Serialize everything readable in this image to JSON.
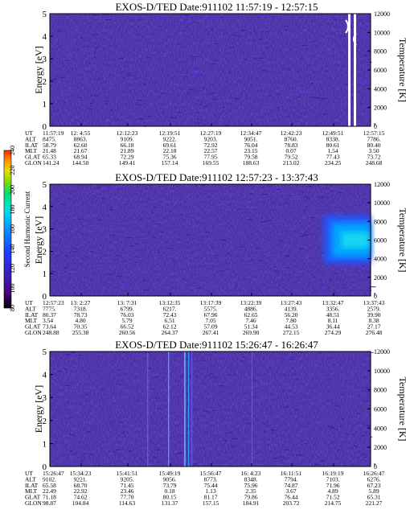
{
  "colorbar": {
    "label": "Second Harmonic Current",
    "ticks": [
      "80",
      "100",
      "120",
      "140",
      "160",
      "180",
      "200",
      "220",
      "240"
    ],
    "colors": [
      "#000000",
      "#4b0082",
      "#3a1fbf",
      "#1a3cff",
      "#0f7bff",
      "#00b4ff",
      "#00e5e0",
      "#00e07a",
      "#7adc00",
      "#e8e000",
      "#ff9a00",
      "#ff2a00"
    ]
  },
  "chart_data": [
    {
      "type": "heatmap",
      "title": "EXOS-D/TED   Date:911102   11:57:19 - 12:57:15",
      "ylabel": "Energy [eV]",
      "y2label": "Temperature [K]",
      "yticks": [
        "0",
        "1",
        "2",
        "3",
        "4",
        "5"
      ],
      "y2ticks": [
        "0",
        "2000",
        "4000",
        "6000",
        "8000",
        "10000",
        "12000"
      ],
      "ylim": [
        0,
        5
      ],
      "y2lim": [
        0,
        12000
      ],
      "background": "#4a2fa8",
      "features": "noise; white gap near 12:52-12:55",
      "table": {
        "rows": [
          "UT",
          "ALT",
          "ILAT",
          "MLT",
          "GLAT",
          "GLON"
        ],
        "cols": [
          [
            "11:57:19",
            "8475.",
            "58.79",
            "21.48",
            "65.33",
            "141.24"
          ],
          [
            "12: 4:55",
            "8863.",
            "62.60",
            "21.67",
            "68.94",
            "144.50"
          ],
          [
            "12:12:23",
            "9109.",
            "66.18",
            "21.89",
            "72.29",
            "149.41"
          ],
          [
            "12:19:51",
            "9222.",
            "69.61",
            "22.18",
            "75.36",
            "157.14"
          ],
          [
            "12:27:19",
            "9203.",
            "72.92",
            "22.57",
            "77.95",
            "169.55"
          ],
          [
            "12:34:47",
            "9051.",
            "76.04",
            "23.15",
            "79.58",
            "188.63"
          ],
          [
            "12:42:23",
            "8760.",
            "78.83",
            "0.07",
            "79.52",
            "213.02"
          ],
          [
            "12:49:51",
            "8338.",
            "80.61",
            "1.54",
            "77.43",
            "234.25"
          ],
          [
            "12:57:15",
            "7786.",
            "80.40",
            "3.50",
            "73.72",
            "248.68"
          ]
        ]
      }
    },
    {
      "type": "heatmap",
      "title": "EXOS-D/TED   Date:911102   12:57:23 - 13:37:43",
      "ylabel": "Energy [eV]",
      "y2label": "Temperature [K]",
      "yticks": [
        "0",
        "1",
        "2",
        "3",
        "4",
        "5"
      ],
      "y2ticks": [
        "0",
        "2000",
        "4000",
        "6000",
        "8000",
        "10000",
        "12000"
      ],
      "ylim": [
        0,
        5
      ],
      "y2lim": [
        0,
        12000
      ],
      "background": "#4a2fa8",
      "features": "intense band 1-3.5 eV after 13:30",
      "table": {
        "rows": [
          "UT",
          "ALT",
          "ILAT",
          "MLT",
          "GLAT",
          "GLON"
        ],
        "cols": [
          [
            "12:57:23",
            "7775.",
            "80.37",
            "3.54",
            "73.64",
            "248.88"
          ],
          [
            "13: 2:27",
            "7318.",
            "78.73",
            "4.80",
            "70.35",
            "255.38"
          ],
          [
            "13: 7:31",
            "6799.",
            "76.03",
            "5.79",
            "66.52",
            "260.56"
          ],
          [
            "13:12:35",
            "6217.",
            "72.43",
            "6.51",
            "62.12",
            "264.37"
          ],
          [
            "13:17:39",
            "5575.",
            "67.96",
            "7.05",
            "57.09",
            "267.41"
          ],
          [
            "13:22:39",
            "4886.",
            "62.65",
            "7.46",
            "51.34",
            "269.90"
          ],
          [
            "13:27:43",
            "4139.",
            "56.20",
            "7.80",
            "44.53",
            "272.15"
          ],
          [
            "13:32:47",
            "3356.",
            "48.51",
            "8.11",
            "36.44",
            "274.29"
          ],
          [
            "13:37:43",
            "2579.",
            "39.90",
            "8.38",
            "27.17",
            "276.48"
          ]
        ]
      }
    },
    {
      "type": "heatmap",
      "title": "EXOS-D/TED   Date:911102   15:26:47 - 16:26:47",
      "ylabel": "Energy [eV]",
      "y2label": "Temperature [K]",
      "yticks": [
        "0",
        "1",
        "2",
        "3",
        "4",
        "5"
      ],
      "y2ticks": [
        "0",
        "2000",
        "4000",
        "6000",
        "8000",
        "10000",
        "12000"
      ],
      "ylim": [
        0,
        5
      ],
      "y2lim": [
        0,
        12000
      ],
      "background": "#4a2fa8",
      "features": "vertical stripes near 15:47-15:50",
      "table": {
        "rows": [
          "UT",
          "ALT",
          "ILAT",
          "MLT",
          "GLAT",
          "GLON"
        ],
        "cols": [
          [
            "15:26:47",
            "9102.",
            "65.58",
            "22.49",
            "71.18",
            "98.87"
          ],
          [
            "15:34:23",
            "9221.",
            "68.70",
            "22.92",
            "74.62",
            "104.84"
          ],
          [
            "15:41:51",
            "9205.",
            "71.45",
            "23.46",
            "77.70",
            "114.63"
          ],
          [
            "15:49:19",
            "9056.",
            "73.79",
            "0.18",
            "80.15",
            "131.37"
          ],
          [
            "15:56:47",
            "8773.",
            "75.44",
            "1.13",
            "81.17",
            "157.15"
          ],
          [
            "16: 4:23",
            "8348.",
            "75.96",
            "2.35",
            "79.86",
            "184.91"
          ],
          [
            "16:11:51",
            "7794.",
            "74.87",
            "3.67",
            "76.44",
            "203.72"
          ],
          [
            "16:19:19",
            "7103.",
            "71.96",
            "4.89",
            "71.52",
            "214.75"
          ],
          [
            "16:26:47",
            "6276.",
            "67.23",
            "5.89",
            "65.31",
            "221.27"
          ]
        ]
      }
    }
  ]
}
